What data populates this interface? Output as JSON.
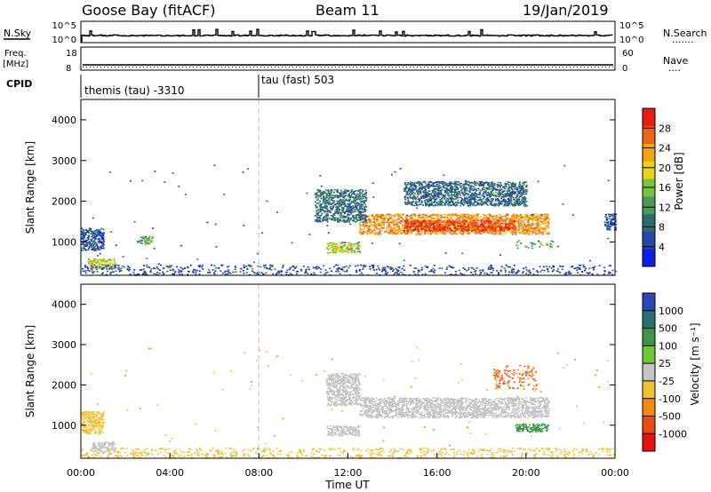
{
  "header": {
    "title": "Goose Bay (fitACF)",
    "beam": "Beam 11",
    "date": "19/Jan/2019"
  },
  "panels": {
    "nsky_label": "N.Sky",
    "nsearch_label": "N.Search",
    "nsearch_dots": ".......",
    "count_ticks": [
      "10^5",
      "10^0"
    ],
    "freq_label": "Freq.",
    "freq_unit": "[MHz]",
    "freq_ticks": [
      "18",
      "8"
    ],
    "nave_label": "Nave",
    "nave_dots": "....",
    "nave_ticks": [
      "60",
      "0"
    ],
    "cpid_label": "CPID",
    "cpid_segments": [
      {
        "label": "themis (tau) -3310",
        "start_hour": 0
      },
      {
        "label": "tau (fast) 503",
        "start_hour": 8
      }
    ]
  },
  "chart_data": [
    {
      "type": "heatmap",
      "quantity": "Power",
      "ylabel": "Slant Range [km]",
      "xlabel": "",
      "ylim": [
        180,
        4500
      ],
      "xlim_hours": [
        0,
        24
      ],
      "yticks": [
        "1000",
        "2000",
        "3000",
        "4000"
      ],
      "colorbar": {
        "label": "Power [dB]",
        "range": [
          0,
          32
        ],
        "ticks": [
          "4",
          "8",
          "12",
          "16",
          "20",
          "24",
          "28"
        ]
      },
      "regions": [
        {
          "t0": 12.5,
          "t1": 21.0,
          "r0": 1200,
          "r1": 1700,
          "level": 24
        },
        {
          "t0": 14.5,
          "t1": 19.5,
          "r0": 1280,
          "r1": 1550,
          "level": 29
        },
        {
          "t0": 11.0,
          "t1": 12.5,
          "r0": 750,
          "r1": 1000,
          "level": 18
        },
        {
          "t0": 10.5,
          "t1": 12.8,
          "r0": 1500,
          "r1": 2300,
          "level": 9
        },
        {
          "t0": 19.5,
          "t1": 21.2,
          "r0": 850,
          "r1": 1050,
          "level": 14
        },
        {
          "t0": 0.3,
          "t1": 1.5,
          "r0": 350,
          "r1": 600,
          "level": 18
        },
        {
          "t0": 0.0,
          "t1": 24.0,
          "r0": 200,
          "r1": 450,
          "level": 6
        },
        {
          "t0": 0.0,
          "t1": 1.0,
          "r0": 800,
          "r1": 1350,
          "level": 6
        },
        {
          "t0": 2.5,
          "t1": 3.2,
          "r0": 950,
          "r1": 1150,
          "level": 14
        },
        {
          "t0": 14.5,
          "t1": 20.0,
          "r0": 1900,
          "r1": 2500,
          "level": 8
        },
        {
          "t0": 23.5,
          "t1": 24.0,
          "r0": 1300,
          "r1": 1700,
          "level": 6
        }
      ]
    },
    {
      "type": "heatmap",
      "quantity": "Velocity",
      "ylabel": "Slant Range [km]",
      "xlabel": "Time UT",
      "ylim": [
        180,
        4500
      ],
      "xlim_hours": [
        0,
        24
      ],
      "yticks": [
        "1000",
        "2000",
        "3000",
        "4000"
      ],
      "xticks": [
        "00:00",
        "04:00",
        "08:00",
        "12:00",
        "16:00",
        "20:00",
        "00:00"
      ],
      "colorbar": {
        "label": "Velocity [m s⁻¹]",
        "ticks": [
          "1000",
          "500",
          "100",
          "25",
          "-25",
          "-100",
          "-500",
          "-1000"
        ]
      },
      "regions": [
        {
          "t0": 12.5,
          "t1": 21.0,
          "r0": 1200,
          "r1": 1700,
          "level": 0
        },
        {
          "t0": 11.0,
          "t1": 12.5,
          "r0": 1500,
          "r1": 2300,
          "level": 0
        },
        {
          "t0": 11.0,
          "t1": 12.5,
          "r0": 750,
          "r1": 1000,
          "level": 0
        },
        {
          "t0": 19.5,
          "t1": 21.0,
          "r0": 850,
          "r1": 1050,
          "level": 130
        },
        {
          "t0": 0.0,
          "t1": 24.0,
          "r0": 200,
          "r1": 450,
          "level": -60
        },
        {
          "t0": 0.5,
          "t1": 1.5,
          "r0": 350,
          "r1": 600,
          "level": 0
        },
        {
          "t0": 18.5,
          "t1": 20.5,
          "r0": 1900,
          "r1": 2500,
          "level": -300
        },
        {
          "t0": 0.0,
          "t1": 1.0,
          "r0": 800,
          "r1": 1350,
          "level": -60
        }
      ]
    }
  ],
  "colors": {
    "power_scale": [
      "#0b1fe6",
      "#2846a8",
      "#2f6a6e",
      "#4a9a5a",
      "#7cc23c",
      "#e8d21a",
      "#f0a414",
      "#ee6614",
      "#e81e10"
    ],
    "velocity_pos": [
      "#2b48b4",
      "#2a6f70",
      "#3f9648",
      "#6fc935"
    ],
    "velocity_mid": "#c3c3c3",
    "velocity_neg": [
      "#f0c030",
      "#f08a10",
      "#ec4a10",
      "#e81010"
    ]
  }
}
